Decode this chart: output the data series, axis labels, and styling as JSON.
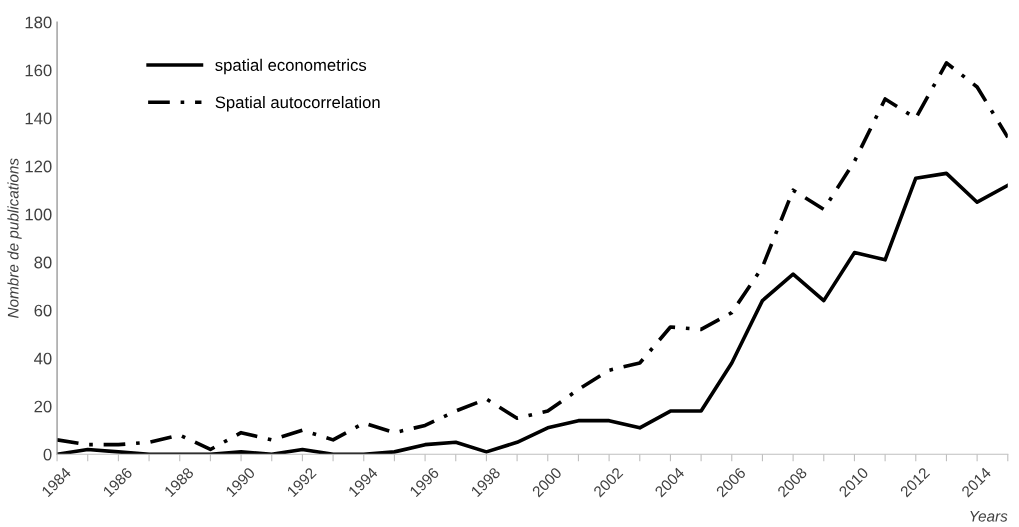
{
  "chart_data": {
    "type": "line",
    "xlabel": "Years",
    "ylabel": "Nombre de publications",
    "x": [
      1984,
      1985,
      1986,
      1987,
      1988,
      1989,
      1990,
      1991,
      1992,
      1993,
      1994,
      1995,
      1996,
      1997,
      1998,
      1999,
      2000,
      2001,
      2002,
      2003,
      2004,
      2005,
      2006,
      2007,
      2008,
      2009,
      2010,
      2011,
      2012,
      2013,
      2014,
      2015
    ],
    "series": [
      {
        "name": "spatial econometrics",
        "color": "#000000",
        "line_style": "solid",
        "values": [
          0,
          2,
          1,
          0,
          0,
          0,
          1,
          0,
          2,
          0,
          0,
          1,
          4,
          5,
          1,
          5,
          11,
          14,
          14,
          11,
          18,
          18,
          38,
          64,
          75,
          64,
          84,
          81,
          115,
          117,
          105,
          112
        ]
      },
      {
        "name": "Spatial autocorrelation",
        "color": "#000000",
        "line_style": "dashdot",
        "values": [
          6,
          4,
          4,
          5,
          8,
          2,
          9,
          6,
          10,
          6,
          13,
          9,
          12,
          18,
          23,
          15,
          18,
          27,
          35,
          38,
          53,
          52,
          59,
          78,
          110,
          102,
          122,
          148,
          140,
          163,
          153,
          132
        ]
      }
    ],
    "xlim": [
      1984,
      2015
    ],
    "xticks": [
      1984,
      {
        "value": 1985,
        "label": null
      },
      1986,
      {
        "value": 1987,
        "label": null
      },
      1988,
      {
        "value": 1989,
        "label": null
      },
      1990,
      {
        "value": 1991,
        "label": null
      },
      1992,
      {
        "value": 1993,
        "label": null
      },
      1994,
      {
        "value": 1995,
        "label": null
      },
      1996,
      {
        "value": 1997,
        "label": null
      },
      1998,
      {
        "value": 1999,
        "label": null
      },
      2000,
      {
        "value": 2001,
        "label": null
      },
      2002,
      {
        "value": 2003,
        "label": null
      },
      2004,
      {
        "value": 2005,
        "label": null
      },
      2006,
      {
        "value": 2007,
        "label": null
      },
      2008,
      {
        "value": 2009,
        "label": null
      },
      2010,
      {
        "value": 2011,
        "label": null
      },
      2012,
      {
        "value": 2013,
        "label": null
      },
      2014,
      {
        "value": 2015,
        "label": null
      }
    ],
    "ylim": [
      0,
      180
    ],
    "yticks": [
      0,
      20,
      40,
      60,
      80,
      100,
      120,
      140,
      160,
      180
    ],
    "grid": false,
    "legend": "top left",
    "marker": "none"
  }
}
